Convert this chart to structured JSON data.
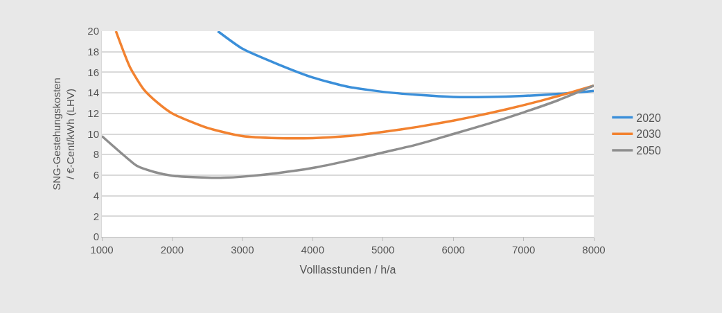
{
  "chart_data": {
    "type": "line",
    "xlabel": "Volllasstunden / h/a",
    "ylabel": "SNG-Gestehungskosten\n/ €-Cent/kWh (LHV)",
    "xlim": [
      1000,
      8000
    ],
    "xticks": [
      1000,
      2000,
      3000,
      4000,
      5000,
      6000,
      7000,
      8000
    ],
    "ylim": [
      0,
      20
    ],
    "yticks": [
      0,
      2,
      4,
      6,
      8,
      10,
      12,
      14,
      16,
      18,
      20
    ],
    "grid": "y",
    "legend": "right",
    "marker": "none",
    "line_style": "solid",
    "series": [
      {
        "name": "2020",
        "color": "#3b8fd9",
        "x": [
          2650,
          3000,
          3500,
          4000,
          4500,
          5000,
          5500,
          6000,
          6500,
          7000,
          7500,
          8000
        ],
        "values": [
          20,
          18.3,
          16.8,
          15.5,
          14.6,
          14.1,
          13.8,
          13.6,
          13.6,
          13.7,
          13.9,
          14.2
        ]
      },
      {
        "name": "2030",
        "color": "#f28230",
        "x": [
          1200,
          1400,
          1600,
          1800,
          2000,
          2500,
          3000,
          3500,
          4000,
          4500,
          5000,
          5500,
          6000,
          6500,
          7000,
          7500,
          8000
        ],
        "values": [
          20,
          16.5,
          14.3,
          13.0,
          12.0,
          10.6,
          9.8,
          9.6,
          9.6,
          9.8,
          10.2,
          10.7,
          11.3,
          12.0,
          12.8,
          13.7,
          14.7
        ]
      },
      {
        "name": "2050",
        "color": "#8e8e8e",
        "x": [
          1000,
          1250,
          1500,
          1750,
          2000,
          2500,
          2750,
          3000,
          3500,
          4000,
          4500,
          5000,
          5500,
          6000,
          6500,
          7000,
          7500,
          8000
        ],
        "values": [
          9.8,
          8.3,
          6.9,
          6.3,
          5.95,
          5.75,
          5.75,
          5.85,
          6.2,
          6.7,
          7.4,
          8.2,
          9.0,
          10.0,
          11.0,
          12.1,
          13.3,
          14.7
        ]
      }
    ]
  }
}
